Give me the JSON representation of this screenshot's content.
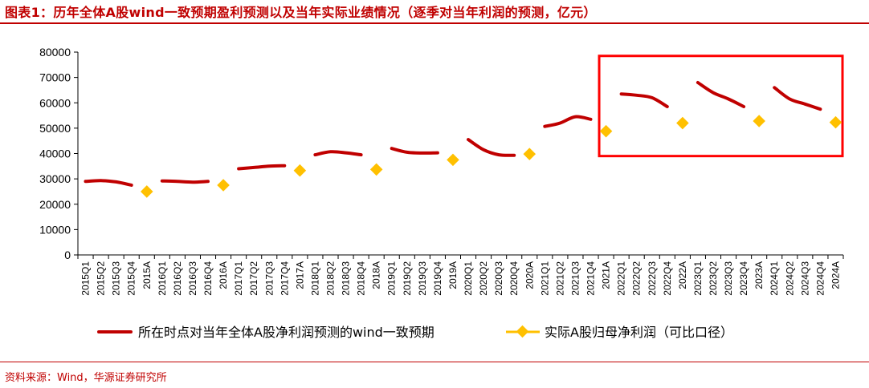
{
  "title": "图表1：历年全体A股wind一致预期盈利预测以及当年实际业绩情况（逐季对当年利润的预测，亿元）",
  "source": "资料来源：Wind，华源证券研究所",
  "colors": {
    "forecast": "#c00000",
    "actual": "#ffc000",
    "highlight_box": "#ff0000",
    "axis": "#000000"
  },
  "chart_data": {
    "type": "line",
    "categories": [
      "2015Q1",
      "2015Q2",
      "2015Q3",
      "2015Q4",
      "2015A",
      "2016Q1",
      "2016Q2",
      "2016Q3",
      "2016Q4",
      "2016A",
      "2017Q1",
      "2017Q2",
      "2017Q3",
      "2017Q4",
      "2017A",
      "2018Q1",
      "2018Q2",
      "2018Q3",
      "2018Q4",
      "2018A",
      "2019Q1",
      "2019Q2",
      "2019Q3",
      "2019Q4",
      "2019A",
      "2020Q1",
      "2020Q2",
      "2020Q3",
      "2020Q4",
      "2020A",
      "2021Q1",
      "2021Q2",
      "2021Q3",
      "2021Q4",
      "2021A",
      "2022Q1",
      "2022Q2",
      "2022Q3",
      "2022Q4",
      "2022A",
      "2023Q1",
      "2023Q2",
      "2023Q3",
      "2023Q4",
      "2023A",
      "2024Q1",
      "2024Q2",
      "2024Q3",
      "2024Q4",
      "2024A"
    ],
    "ylim": [
      0,
      80000
    ],
    "yticks": [
      "0",
      "10000",
      "20000",
      "30000",
      "40000",
      "50000",
      "60000",
      "70000",
      "80000"
    ],
    "series": [
      {
        "name": "所在时点对当年全体A股净利润预测的wind一致预期",
        "kind": "line",
        "segments": [
          [
            [
              "2015Q1",
              29000
            ],
            [
              "2015Q2",
              29300
            ],
            [
              "2015Q3",
              28800
            ],
            [
              "2015Q4",
              27500
            ]
          ],
          [
            [
              "2016Q1",
              29200
            ],
            [
              "2016Q2",
              29000
            ],
            [
              "2016Q3",
              28700
            ],
            [
              "2016Q4",
              29000
            ]
          ],
          [
            [
              "2017Q1",
              34000
            ],
            [
              "2017Q2",
              34500
            ],
            [
              "2017Q3",
              35000
            ],
            [
              "2017Q4",
              35200
            ]
          ],
          [
            [
              "2018Q1",
              39500
            ],
            [
              "2018Q2",
              40700
            ],
            [
              "2018Q3",
              40300
            ],
            [
              "2018Q4",
              39500
            ]
          ],
          [
            [
              "2019Q1",
              42000
            ],
            [
              "2019Q2",
              40500
            ],
            [
              "2019Q3",
              40200
            ],
            [
              "2019Q4",
              40300
            ]
          ],
          [
            [
              "2020Q1",
              45500
            ],
            [
              "2020Q2",
              41500
            ],
            [
              "2020Q3",
              39500
            ],
            [
              "2020Q4",
              39300
            ]
          ],
          [
            [
              "2021Q1",
              50700
            ],
            [
              "2021Q2",
              52000
            ],
            [
              "2021Q3",
              54500
            ],
            [
              "2021Q4",
              53500
            ]
          ],
          [
            [
              "2022Q1",
              63500
            ],
            [
              "2022Q2",
              63000
            ],
            [
              "2022Q3",
              62000
            ],
            [
              "2022Q4",
              58500
            ]
          ],
          [
            [
              "2023Q1",
              68000
            ],
            [
              "2023Q2",
              64000
            ],
            [
              "2023Q3",
              61500
            ],
            [
              "2023Q4",
              58500
            ]
          ],
          [
            [
              "2024Q1",
              66000
            ],
            [
              "2024Q2",
              61500
            ],
            [
              "2024Q3",
              59500
            ],
            [
              "2024Q4",
              57500
            ]
          ]
        ]
      },
      {
        "name": "实际A股归母净利润（可比口径）",
        "kind": "marker",
        "points": [
          [
            "2015A",
            25000
          ],
          [
            "2016A",
            27500
          ],
          [
            "2017A",
            33300
          ],
          [
            "2018A",
            33700
          ],
          [
            "2019A",
            37500
          ],
          [
            "2020A",
            39800
          ],
          [
            "2021A",
            48800
          ],
          [
            "2022A",
            52000
          ],
          [
            "2023A",
            52800
          ],
          [
            "2024A",
            52300
          ]
        ]
      }
    ],
    "highlight_box": {
      "from": "2021A",
      "to": "2024A",
      "ylim": [
        39000,
        78500
      ]
    },
    "legend": "bottom"
  }
}
